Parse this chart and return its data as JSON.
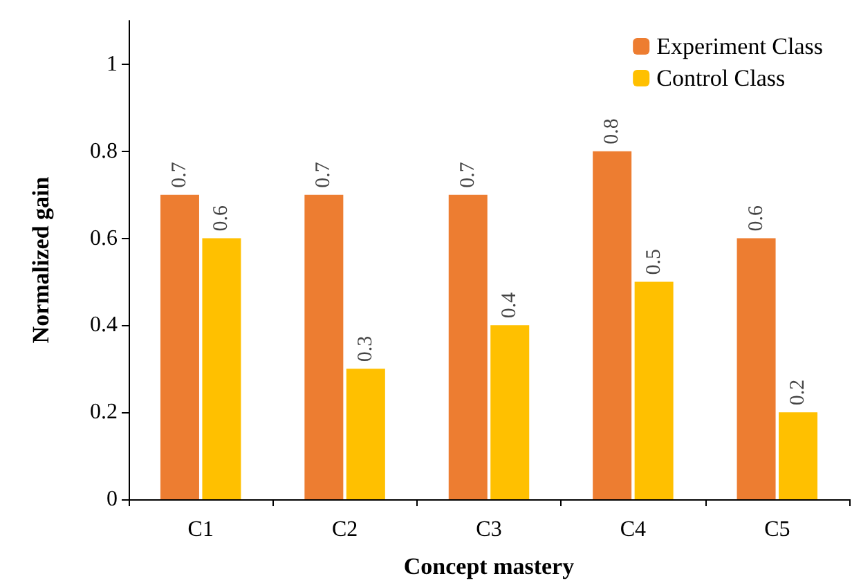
{
  "chart_data": {
    "type": "bar",
    "xlabel": "Concept mastery",
    "ylabel": "Normalized gain",
    "categories": [
      "C1",
      "C2",
      "C3",
      "C4",
      "C5"
    ],
    "series": [
      {
        "name": "Experiment Class",
        "color": "#ed7d31",
        "values": [
          0.7,
          0.7,
          0.7,
          0.8,
          0.6
        ]
      },
      {
        "name": "Control Class",
        "color": "#ffc000",
        "values": [
          0.6,
          0.3,
          0.4,
          0.5,
          0.2
        ]
      }
    ],
    "ylim": [
      0,
      1.1
    ],
    "yticks": [
      0,
      0.2,
      0.4,
      0.6,
      0.8,
      1
    ],
    "grid": false,
    "legend": "top right",
    "data_labels": true
  }
}
